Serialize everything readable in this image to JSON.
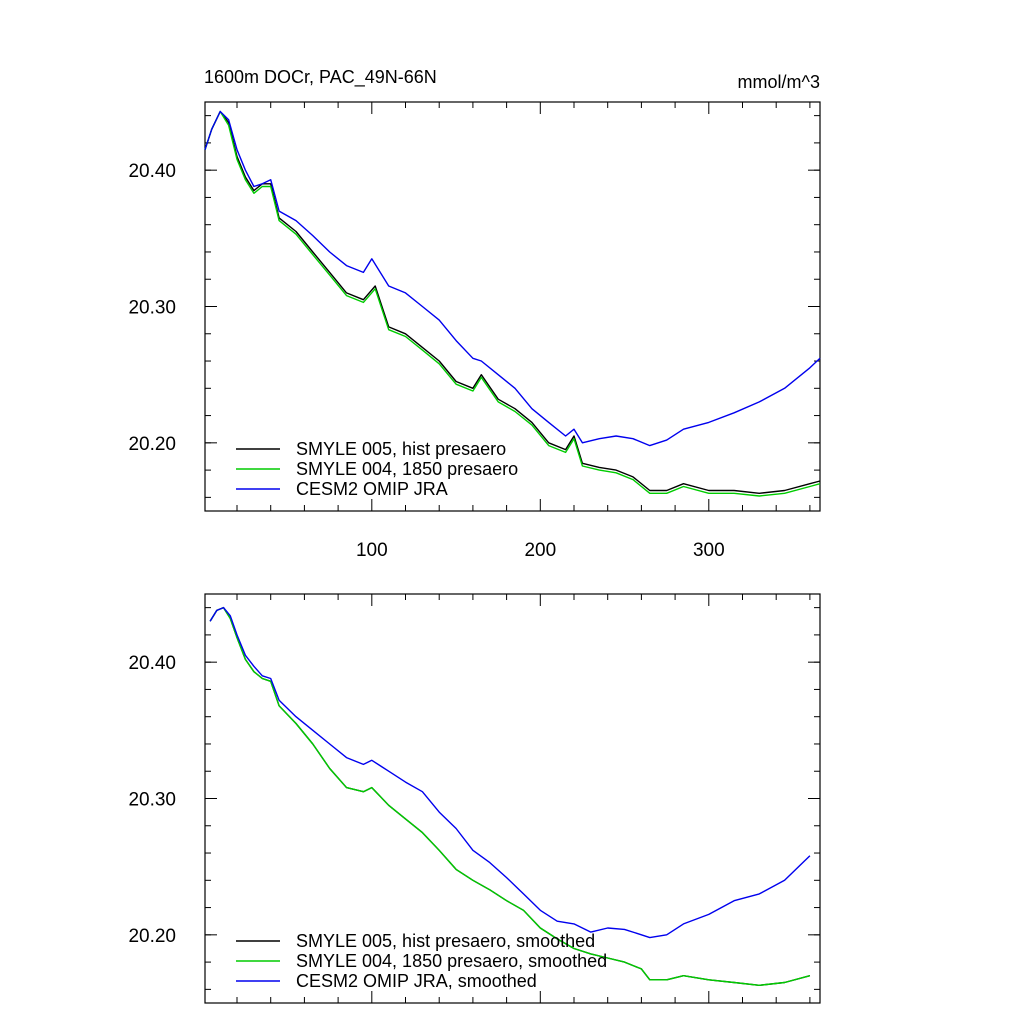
{
  "chart_data": [
    {
      "type": "line",
      "title": "1600m DOCr, PAC_49N-66N",
      "units": "mmol/m^3",
      "xlim": [
        1,
        366
      ],
      "ylim": [
        20.15,
        20.45
      ],
      "xticks": [
        100,
        200,
        300
      ],
      "yticks": [
        20.2,
        20.3,
        20.4
      ],
      "ytick_labels": [
        "20.20",
        "20.30",
        "20.40"
      ],
      "xtick_labels": [
        "100",
        "200",
        "300"
      ],
      "legend_position": "bottom-left",
      "series": [
        {
          "name": "SMYLE 005, hist presaero",
          "color": "#000000",
          "x": [
            1,
            5,
            10,
            15,
            20,
            25,
            30,
            35,
            40,
            45,
            55,
            65,
            75,
            85,
            95,
            102,
            110,
            120,
            130,
            140,
            150,
            160,
            165,
            175,
            185,
            195,
            205,
            215,
            220,
            225,
            235,
            245,
            255,
            265,
            275,
            285,
            300,
            315,
            330,
            345,
            360,
            366
          ],
          "values": [
            20.415,
            20.43,
            20.443,
            20.435,
            20.41,
            20.395,
            20.385,
            20.39,
            20.39,
            20.365,
            20.355,
            20.34,
            20.325,
            20.31,
            20.305,
            20.315,
            20.285,
            20.28,
            20.27,
            20.26,
            20.245,
            20.24,
            20.25,
            20.232,
            20.225,
            20.215,
            20.2,
            20.195,
            20.205,
            20.185,
            20.182,
            20.18,
            20.175,
            20.165,
            20.165,
            20.17,
            20.165,
            20.165,
            20.163,
            20.165,
            20.17,
            20.172
          ]
        },
        {
          "name": "SMYLE 004, 1850 presaero",
          "color": "#00cc00",
          "x": [
            1,
            5,
            10,
            15,
            20,
            25,
            30,
            35,
            40,
            45,
            55,
            65,
            75,
            85,
            95,
            102,
            110,
            120,
            130,
            140,
            150,
            160,
            165,
            175,
            185,
            195,
            205,
            215,
            220,
            225,
            235,
            245,
            255,
            265,
            275,
            285,
            300,
            315,
            330,
            345,
            360,
            366
          ],
          "values": [
            20.415,
            20.43,
            20.443,
            20.433,
            20.408,
            20.393,
            20.383,
            20.388,
            20.388,
            20.363,
            20.353,
            20.338,
            20.323,
            20.308,
            20.303,
            20.313,
            20.283,
            20.278,
            20.268,
            20.258,
            20.243,
            20.238,
            20.248,
            20.23,
            20.223,
            20.213,
            20.198,
            20.193,
            20.203,
            20.183,
            20.18,
            20.178,
            20.173,
            20.163,
            20.163,
            20.168,
            20.163,
            20.163,
            20.161,
            20.163,
            20.168,
            20.17
          ]
        },
        {
          "name": "CESM2 OMIP JRA",
          "color": "#0000ee",
          "x": [
            1,
            5,
            10,
            15,
            20,
            25,
            30,
            35,
            40,
            45,
            55,
            65,
            75,
            85,
            95,
            100,
            110,
            120,
            130,
            140,
            150,
            160,
            165,
            175,
            185,
            195,
            205,
            215,
            220,
            225,
            235,
            245,
            255,
            265,
            275,
            285,
            300,
            315,
            330,
            345,
            360,
            366
          ],
          "values": [
            20.415,
            20.43,
            20.443,
            20.437,
            20.415,
            20.4,
            20.388,
            20.39,
            20.393,
            20.37,
            20.363,
            20.352,
            20.34,
            20.33,
            20.325,
            20.335,
            20.315,
            20.31,
            20.3,
            20.29,
            20.275,
            20.262,
            20.26,
            20.25,
            20.24,
            20.225,
            20.215,
            20.205,
            20.21,
            20.2,
            20.203,
            20.205,
            20.203,
            20.198,
            20.202,
            20.21,
            20.215,
            20.222,
            20.23,
            20.24,
            20.255,
            20.262
          ]
        }
      ]
    },
    {
      "type": "line",
      "title": "",
      "units": "",
      "xlim": [
        1,
        366
      ],
      "ylim": [
        20.15,
        20.45
      ],
      "xticks": [
        100,
        200,
        300
      ],
      "yticks": [
        20.2,
        20.3,
        20.4
      ],
      "ytick_labels": [
        "20.20",
        "20.30",
        "20.40"
      ],
      "xtick_labels": [],
      "legend_position": "bottom-left",
      "series": [
        {
          "name": "SMYLE 005, hist presaero, smoothed",
          "color": "#000000",
          "x": [
            4,
            8,
            12,
            16,
            20,
            25,
            30,
            35,
            40,
            45,
            55,
            65,
            75,
            85,
            95,
            100,
            110,
            120,
            130,
            140,
            150,
            160,
            170,
            180,
            190,
            200,
            210,
            220,
            230,
            240,
            250,
            260,
            265,
            275,
            285,
            300,
            315,
            330,
            345,
            360
          ],
          "values": [
            20.43,
            20.438,
            20.44,
            20.432,
            20.418,
            20.402,
            20.393,
            20.388,
            20.386,
            20.368,
            20.355,
            20.34,
            20.322,
            20.308,
            20.305,
            20.308,
            20.295,
            20.285,
            20.275,
            20.262,
            20.248,
            20.24,
            20.233,
            20.225,
            20.218,
            20.205,
            20.197,
            20.19,
            20.186,
            20.183,
            20.18,
            20.175,
            20.167,
            20.167,
            20.17,
            20.167,
            20.165,
            20.163,
            20.165,
            20.17
          ]
        },
        {
          "name": "SMYLE 004, 1850 presaero, smoothed",
          "color": "#00cc00",
          "x": [
            4,
            8,
            12,
            16,
            20,
            25,
            30,
            35,
            40,
            45,
            55,
            65,
            75,
            85,
            95,
            100,
            110,
            120,
            130,
            140,
            150,
            160,
            170,
            180,
            190,
            200,
            210,
            220,
            230,
            240,
            250,
            260,
            265,
            275,
            285,
            300,
            315,
            330,
            345,
            360
          ],
          "values": [
            20.43,
            20.438,
            20.44,
            20.432,
            20.418,
            20.402,
            20.393,
            20.388,
            20.386,
            20.368,
            20.355,
            20.34,
            20.322,
            20.308,
            20.305,
            20.308,
            20.295,
            20.285,
            20.275,
            20.262,
            20.248,
            20.24,
            20.233,
            20.225,
            20.218,
            20.205,
            20.197,
            20.19,
            20.186,
            20.183,
            20.18,
            20.175,
            20.167,
            20.167,
            20.17,
            20.167,
            20.165,
            20.163,
            20.165,
            20.17
          ]
        },
        {
          "name": "CESM2 OMIP JRA, smoothed",
          "color": "#0000ee",
          "x": [
            4,
            8,
            12,
            16,
            20,
            25,
            30,
            35,
            40,
            45,
            55,
            65,
            75,
            85,
            95,
            100,
            110,
            120,
            130,
            140,
            150,
            160,
            170,
            180,
            190,
            200,
            210,
            220,
            230,
            240,
            250,
            260,
            265,
            275,
            285,
            300,
            315,
            330,
            345,
            360
          ],
          "values": [
            20.43,
            20.438,
            20.44,
            20.434,
            20.42,
            20.405,
            20.397,
            20.39,
            20.388,
            20.372,
            20.36,
            20.35,
            20.34,
            20.33,
            20.325,
            20.328,
            20.32,
            20.312,
            20.305,
            20.29,
            20.278,
            20.262,
            20.253,
            20.242,
            20.23,
            20.218,
            20.21,
            20.208,
            20.202,
            20.205,
            20.204,
            20.2,
            20.198,
            20.2,
            20.208,
            20.215,
            20.225,
            20.23,
            20.24,
            20.258
          ]
        }
      ]
    }
  ]
}
